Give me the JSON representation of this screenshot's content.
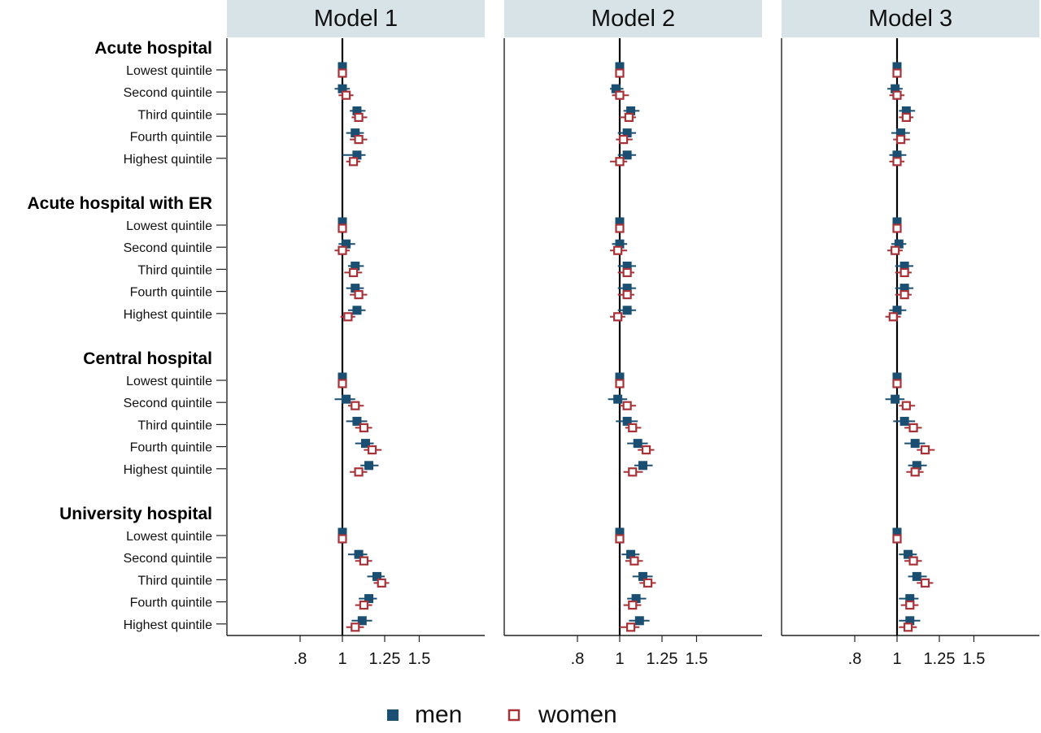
{
  "chart_data": {
    "type": "forest",
    "xaxis": {
      "scale": "log",
      "ticks": [
        0.8,
        1,
        1.25,
        1.5
      ],
      "tick_labels": [
        ".8",
        "1",
        "1.25",
        "1.5"
      ],
      "range": [
        0.7,
        1.75
      ],
      "reference_line": 1
    },
    "panels": [
      "Model 1",
      "Model 2",
      "Model 3"
    ],
    "groups": [
      {
        "label": "Acute hospital",
        "rows": [
          "Lowest quintile",
          "Second quintile",
          "Third quintile",
          "Fourth quintile",
          "Highest quintile"
        ]
      },
      {
        "label": "Acute hospital with ER",
        "rows": [
          "Lowest quintile",
          "Second quintile",
          "Third quintile",
          "Fourth quintile",
          "Highest quintile"
        ]
      },
      {
        "label": "Central hospital",
        "rows": [
          "Lowest quintile",
          "Second quintile",
          "Third quintile",
          "Fourth quintile",
          "Highest quintile"
        ]
      },
      {
        "label": "University hospital",
        "rows": [
          "Lowest quintile",
          "Second quintile",
          "Third quintile",
          "Fourth quintile",
          "Highest quintile"
        ]
      }
    ],
    "series": [
      {
        "name": "men",
        "color": "#1b4f72",
        "marker": "filled-square",
        "values": [
          [
            [
              1.0,
              1.0,
              1.0
            ],
            [
              1.0,
              0.96,
              1.04
            ],
            [
              1.08,
              1.04,
              1.13
            ],
            [
              1.07,
              1.02,
              1.12
            ],
            [
              1.08,
              1.0,
              1.13
            ],
            [
              1.0,
              1.0,
              1.0
            ],
            [
              1.02,
              0.98,
              1.07
            ],
            [
              1.07,
              1.03,
              1.12
            ],
            [
              1.07,
              1.02,
              1.12
            ],
            [
              1.08,
              1.03,
              1.13
            ],
            [
              1.0,
              1.0,
              1.0
            ],
            [
              1.02,
              0.96,
              1.07
            ],
            [
              1.08,
              1.02,
              1.14
            ],
            [
              1.13,
              1.07,
              1.18
            ],
            [
              1.15,
              1.1,
              1.21
            ],
            [
              1.0,
              1.0,
              1.0
            ],
            [
              1.09,
              1.03,
              1.14
            ],
            [
              1.2,
              1.14,
              1.25
            ],
            [
              1.15,
              1.09,
              1.2
            ],
            [
              1.11,
              1.05,
              1.17
            ]
          ],
          [
            [
              1.0,
              1.0,
              1.0
            ],
            [
              0.98,
              0.95,
              1.02
            ],
            [
              1.06,
              1.02,
              1.11
            ],
            [
              1.04,
              0.99,
              1.09
            ],
            [
              1.04,
              0.99,
              1.09
            ],
            [
              1.0,
              1.0,
              1.0
            ],
            [
              1.0,
              0.96,
              1.04
            ],
            [
              1.04,
              0.99,
              1.09
            ],
            [
              1.04,
              0.99,
              1.09
            ],
            [
              1.04,
              0.99,
              1.09
            ],
            [
              1.0,
              1.0,
              1.0
            ],
            [
              0.99,
              0.94,
              1.04
            ],
            [
              1.04,
              0.98,
              1.1
            ],
            [
              1.1,
              1.04,
              1.16
            ],
            [
              1.13,
              1.08,
              1.19
            ],
            [
              1.0,
              1.0,
              1.0
            ],
            [
              1.06,
              1.01,
              1.11
            ],
            [
              1.13,
              1.07,
              1.19
            ],
            [
              1.09,
              1.04,
              1.15
            ],
            [
              1.11,
              1.05,
              1.17
            ]
          ],
          [
            [
              1.0,
              1.0,
              1.0
            ],
            [
              0.99,
              0.95,
              1.03
            ],
            [
              1.05,
              1.01,
              1.1
            ],
            [
              1.02,
              0.97,
              1.07
            ],
            [
              1.0,
              0.96,
              1.05
            ],
            [
              1.0,
              1.0,
              1.0
            ],
            [
              1.01,
              0.97,
              1.05
            ],
            [
              1.04,
              0.99,
              1.09
            ],
            [
              1.04,
              0.99,
              1.09
            ],
            [
              1.0,
              0.96,
              1.05
            ],
            [
              1.0,
              1.0,
              1.0
            ],
            [
              0.99,
              0.94,
              1.04
            ],
            [
              1.04,
              0.98,
              1.1
            ],
            [
              1.1,
              1.04,
              1.16
            ],
            [
              1.11,
              1.06,
              1.17
            ],
            [
              1.0,
              1.0,
              1.0
            ],
            [
              1.06,
              1.01,
              1.11
            ],
            [
              1.11,
              1.06,
              1.17
            ],
            [
              1.07,
              1.01,
              1.12
            ],
            [
              1.07,
              1.01,
              1.13
            ]
          ]
        ]
      },
      {
        "name": "women",
        "color": "#a83238",
        "marker": "hollow-square",
        "values": [
          [
            [
              1.0,
              1.0,
              1.0
            ],
            [
              1.02,
              0.98,
              1.06
            ],
            [
              1.09,
              1.05,
              1.14
            ],
            [
              1.09,
              1.04,
              1.14
            ],
            [
              1.06,
              1.02,
              1.1
            ],
            [
              1.0,
              1.0,
              1.0
            ],
            [
              1.0,
              0.96,
              1.04
            ],
            [
              1.06,
              1.01,
              1.11
            ],
            [
              1.09,
              1.04,
              1.14
            ],
            [
              1.03,
              0.99,
              1.07
            ],
            [
              1.0,
              1.0,
              1.0
            ],
            [
              1.07,
              1.03,
              1.12
            ],
            [
              1.12,
              1.07,
              1.17
            ],
            [
              1.17,
              1.12,
              1.23
            ],
            [
              1.09,
              1.04,
              1.14
            ],
            [
              1.0,
              1.0,
              1.0
            ],
            [
              1.12,
              1.07,
              1.17
            ],
            [
              1.23,
              1.18,
              1.28
            ],
            [
              1.12,
              1.07,
              1.17
            ],
            [
              1.07,
              1.02,
              1.12
            ]
          ],
          [
            [
              1.0,
              1.0,
              1.0
            ],
            [
              1.0,
              0.96,
              1.05
            ],
            [
              1.05,
              1.0,
              1.09
            ],
            [
              1.02,
              0.98,
              1.07
            ],
            [
              1.0,
              0.95,
              1.04
            ],
            [
              1.0,
              1.0,
              1.0
            ],
            [
              0.99,
              0.95,
              1.04
            ],
            [
              1.04,
              0.99,
              1.08
            ],
            [
              1.04,
              0.99,
              1.08
            ],
            [
              0.99,
              0.95,
              1.03
            ],
            [
              1.0,
              1.0,
              1.0
            ],
            [
              1.04,
              1.0,
              1.09
            ],
            [
              1.07,
              1.03,
              1.12
            ],
            [
              1.15,
              1.1,
              1.2
            ],
            [
              1.07,
              1.02,
              1.13
            ],
            [
              1.0,
              1.0,
              1.0
            ],
            [
              1.08,
              1.03,
              1.13
            ],
            [
              1.16,
              1.11,
              1.21
            ],
            [
              1.07,
              1.02,
              1.12
            ],
            [
              1.06,
              1.0,
              1.11
            ]
          ],
          [
            [
              1.0,
              1.0,
              1.0
            ],
            [
              1.0,
              0.96,
              1.04
            ],
            [
              1.05,
              1.01,
              1.09
            ],
            [
              1.02,
              0.98,
              1.07
            ],
            [
              1.0,
              0.96,
              1.04
            ],
            [
              1.0,
              1.0,
              1.0
            ],
            [
              0.99,
              0.95,
              1.03
            ],
            [
              1.04,
              0.99,
              1.08
            ],
            [
              1.04,
              0.99,
              1.08
            ],
            [
              0.98,
              0.94,
              1.02
            ],
            [
              1.0,
              1.0,
              1.0
            ],
            [
              1.05,
              1.01,
              1.1
            ],
            [
              1.09,
              1.04,
              1.14
            ],
            [
              1.16,
              1.11,
              1.22
            ],
            [
              1.1,
              1.05,
              1.15
            ],
            [
              1.0,
              1.0,
              1.0
            ],
            [
              1.09,
              1.04,
              1.14
            ],
            [
              1.16,
              1.11,
              1.21
            ],
            [
              1.07,
              1.02,
              1.12
            ],
            [
              1.06,
              1.01,
              1.11
            ]
          ]
        ]
      }
    ],
    "legend": {
      "placement": "bottom-center"
    }
  }
}
